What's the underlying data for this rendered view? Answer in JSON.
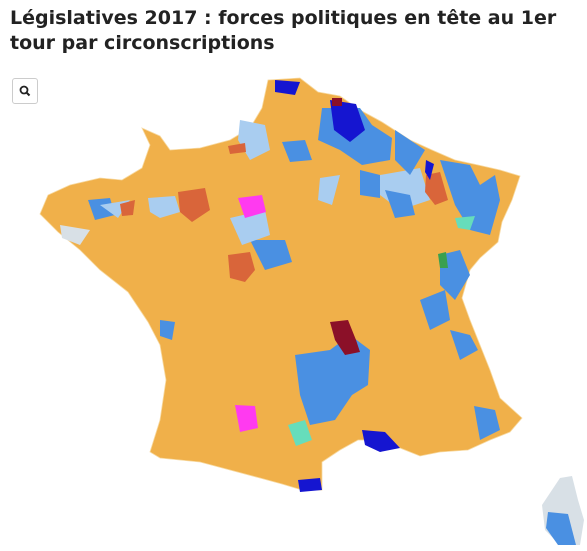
{
  "header": {
    "title": "Législatives 2017 : forces politiques en tête au 1er tour par circonscriptions"
  }
}
